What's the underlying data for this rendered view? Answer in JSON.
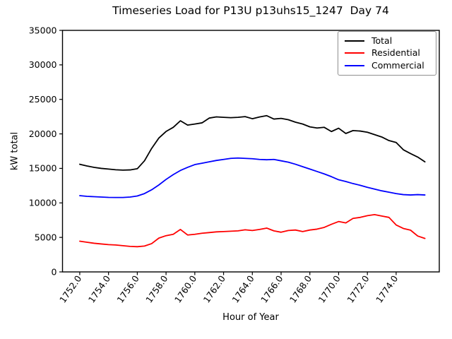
{
  "chart_data": {
    "type": "line",
    "title": "Timeseries Load for P13U p13uhs15_1247  Day 74",
    "xlabel": "Hour of Year",
    "ylabel": "kW total",
    "xlim": [
      1750.8,
      1777.0
    ],
    "ylim": [
      0,
      35000
    ],
    "grid": false,
    "legend_position": "upper right",
    "x": [
      1752.0,
      1752.5,
      1753.0,
      1753.5,
      1754.0,
      1754.5,
      1755.0,
      1755.5,
      1756.0,
      1756.5,
      1757.0,
      1757.5,
      1758.0,
      1758.5,
      1759.0,
      1759.5,
      1760.0,
      1760.5,
      1761.0,
      1761.5,
      1762.0,
      1762.5,
      1763.0,
      1763.5,
      1764.0,
      1764.5,
      1765.0,
      1765.5,
      1766.0,
      1766.5,
      1767.0,
      1767.5,
      1768.0,
      1768.5,
      1769.0,
      1769.5,
      1770.0,
      1770.5,
      1771.0,
      1771.5,
      1772.0,
      1772.5,
      1773.0,
      1773.5,
      1774.0,
      1774.5,
      1775.0,
      1775.5,
      1776.0
    ],
    "series": [
      {
        "name": "Total",
        "color": "#000000",
        "values": [
          15600,
          15350,
          15150,
          15000,
          14900,
          14800,
          14750,
          14780,
          14950,
          16100,
          17900,
          19400,
          20350,
          20950,
          21900,
          21270,
          21430,
          21600,
          22290,
          22460,
          22400,
          22350,
          22400,
          22500,
          22200,
          22450,
          22640,
          22150,
          22250,
          22050,
          21700,
          21430,
          21020,
          20850,
          20950,
          20340,
          20820,
          20060,
          20480,
          20410,
          20240,
          19890,
          19550,
          19030,
          18750,
          17700,
          17150,
          16640,
          15950
        ]
      },
      {
        "name": "Residential",
        "color": "#ff0000",
        "values": [
          4450,
          4300,
          4150,
          4050,
          3950,
          3900,
          3800,
          3700,
          3650,
          3750,
          4100,
          4900,
          5250,
          5450,
          6150,
          5350,
          5450,
          5600,
          5700,
          5800,
          5850,
          5900,
          5950,
          6100,
          6000,
          6150,
          6350,
          5950,
          5750,
          6000,
          6070,
          5850,
          6070,
          6200,
          6450,
          6900,
          7300,
          7100,
          7750,
          7900,
          8150,
          8300,
          8100,
          7900,
          6800,
          6300,
          6050,
          5200,
          4850
        ]
      },
      {
        "name": "Commercial",
        "color": "#0000ff",
        "values": [
          11050,
          10950,
          10900,
          10850,
          10800,
          10780,
          10780,
          10850,
          11000,
          11350,
          11900,
          12600,
          13400,
          14100,
          14700,
          15150,
          15550,
          15750,
          15950,
          16150,
          16300,
          16450,
          16500,
          16450,
          16400,
          16300,
          16250,
          16300,
          16100,
          15900,
          15600,
          15250,
          14900,
          14550,
          14200,
          13800,
          13350,
          13100,
          12800,
          12550,
          12250,
          12000,
          11750,
          11550,
          11350,
          11200,
          11150,
          11200,
          11150
        ]
      }
    ],
    "xticks": {
      "values": [
        1752,
        1754,
        1756,
        1758,
        1760,
        1762,
        1764,
        1766,
        1768,
        1770,
        1772,
        1774
      ],
      "labels": [
        "1752.0",
        "1754.0",
        "1756.0",
        "1758.0",
        "1760.0",
        "1762.0",
        "1764.0",
        "1766.0",
        "1768.0",
        "1770.0",
        "1772.0",
        "1774.0"
      ]
    },
    "yticks": {
      "values": [
        0,
        5000,
        10000,
        15000,
        20000,
        25000,
        30000,
        35000
      ],
      "labels": [
        "0",
        "5000",
        "10000",
        "15000",
        "20000",
        "25000",
        "30000",
        "35000"
      ]
    }
  }
}
